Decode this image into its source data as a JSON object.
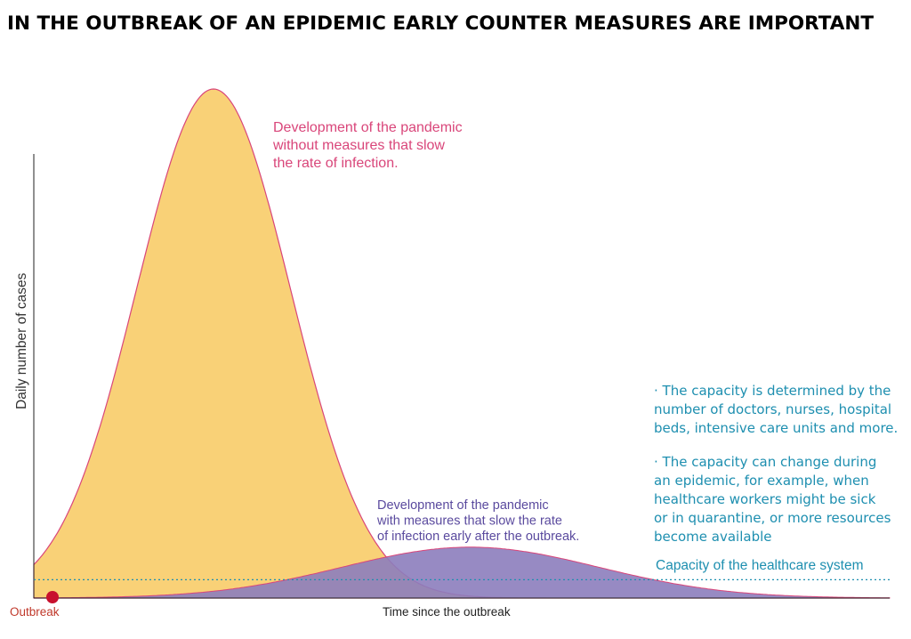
{
  "page_title": "IN THE OUTBREAK OF AN EPIDEMIC EARLY COUNTER MEASURES ARE IMPORTANT",
  "chart_data": {
    "type": "area",
    "ylabel": "Daily number of cases",
    "xlabel": "Time since the outbreak",
    "origin_label": "Outbreak",
    "grid": false,
    "series": [
      {
        "label_lines": [
          "Development of the pandemic",
          "without measures that slow",
          "the rate of infection."
        ],
        "color": "#f9d177",
        "outline": "#d9467a",
        "peak_time": 0.21,
        "peak_height": 1.0,
        "spread": 0.09
      },
      {
        "label_lines": [
          "Development of the pandemic",
          "with measures that slow the rate",
          "of infection early after the outbreak."
        ],
        "color": "#8c7dbc",
        "outline": "#d9467a",
        "peak_time": 0.51,
        "peak_height": 0.1,
        "spread": 0.15
      }
    ],
    "capacity": {
      "label": "Capacity of the healthcare system",
      "level": 0.036,
      "color": "#1e8fb0"
    },
    "notes": [
      [
        "· The capacity is determined by the",
        "number of doctors, nurses, hospital",
        "beds, intensive care units and more."
      ],
      [
        "· The capacity can change during",
        "an epidemic, for example, when",
        "healthcare workers might be sick",
        "or in quarantine, or more resources",
        "become available"
      ]
    ],
    "colors": {
      "axis": "#222222",
      "outbreak_dot": "#c8102e",
      "outbreak_text": "#c0392b",
      "unmitigated_text": "#d9467a",
      "mitigated_text": "#5a4a9e",
      "notes_text": "#1e8fb0"
    }
  }
}
